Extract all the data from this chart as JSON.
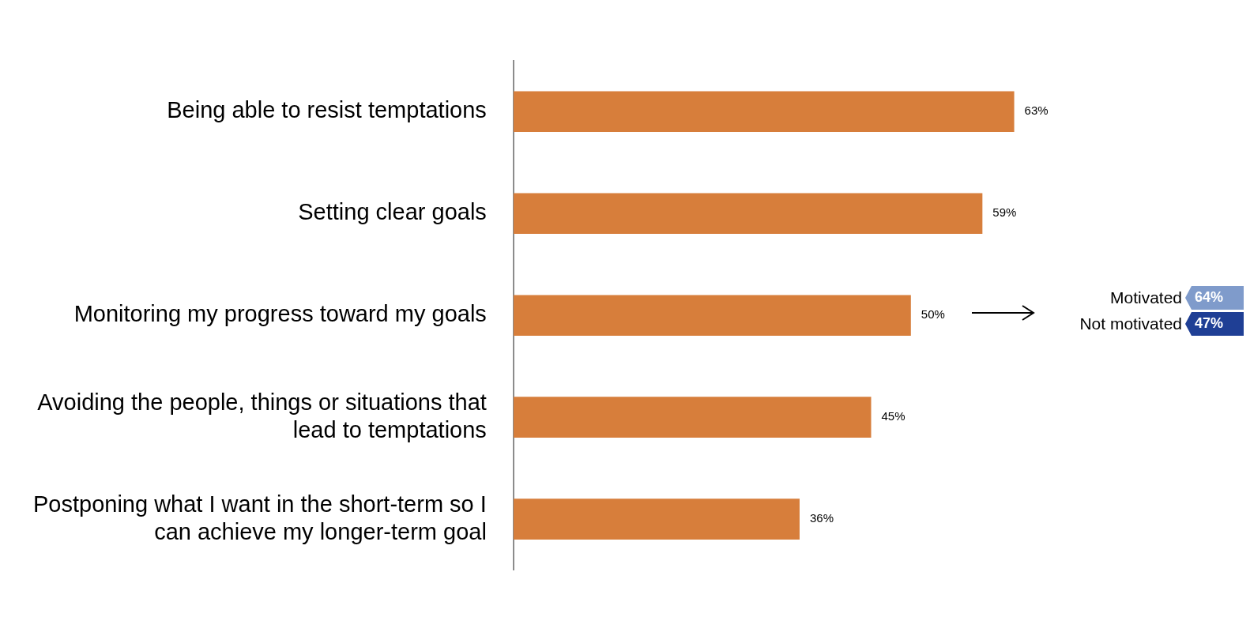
{
  "chart_data": {
    "type": "bar",
    "orientation": "horizontal",
    "categories": [
      "Being able to resist temptations",
      "Setting clear goals",
      "Monitoring my progress toward my goals",
      "Avoiding the people, things or situations that lead to temptations",
      "Postponing what I want in the short-term so I can achieve my longer-term goal"
    ],
    "values": [
      63,
      59,
      50,
      45,
      36
    ],
    "value_labels": [
      "63%",
      "59%",
      "50%",
      "45%",
      "36%"
    ],
    "color": "#d77e3b",
    "tick_labels": "y",
    "legend": false,
    "annotations": [
      "Motivated",
      "64%",
      "Not motivated",
      "47%"
    ]
  }
}
